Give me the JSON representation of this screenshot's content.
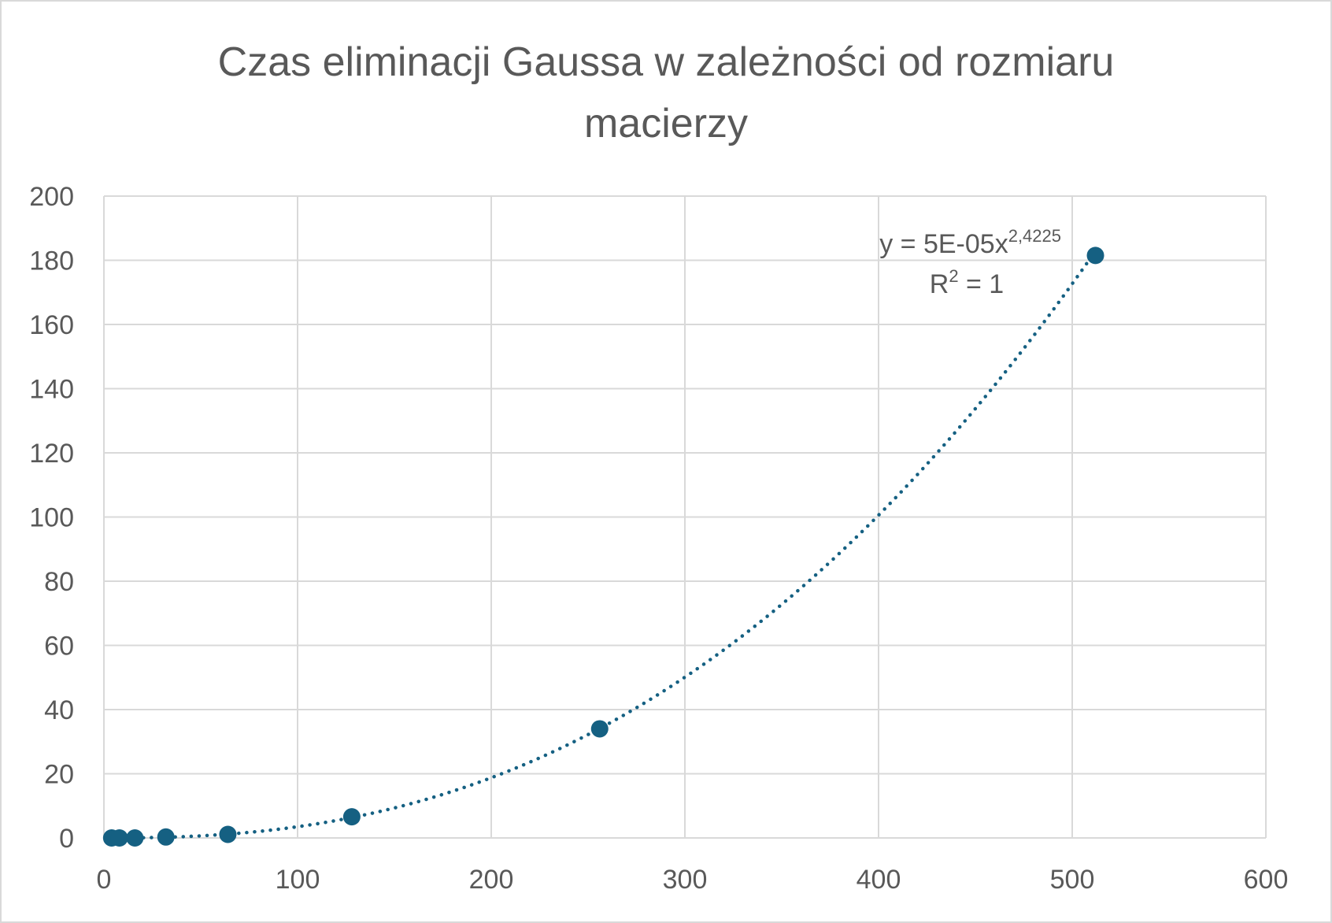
{
  "chart_data": {
    "type": "scatter",
    "title_lines": [
      "Czas eliminacji Gaussa w zależności od rozmiaru",
      "macierzy"
    ],
    "xlabel": "",
    "ylabel": "",
    "xlim": [
      0,
      600
    ],
    "ylim": [
      0,
      200
    ],
    "x_ticks": [
      0,
      100,
      200,
      300,
      400,
      500,
      600
    ],
    "y_ticks": [
      0,
      20,
      40,
      60,
      80,
      100,
      120,
      140,
      160,
      180,
      200
    ],
    "grid": true,
    "legend": "none",
    "series": [
      {
        "points": [
          {
            "x": 4,
            "y": 0
          },
          {
            "x": 8,
            "y": 0
          },
          {
            "x": 16,
            "y": 0
          },
          {
            "x": 32,
            "y": 0.3
          },
          {
            "x": 64,
            "y": 1.1
          },
          {
            "x": 128,
            "y": 6.6
          },
          {
            "x": 256,
            "y": 34
          },
          {
            "x": 512,
            "y": 181.5
          }
        ],
        "color": "#156082"
      }
    ],
    "trendline": {
      "type": "power",
      "coefficient": 5e-05,
      "exponent": 2.4225,
      "style": "dotted",
      "color": "#156082",
      "equation_base": "y = 5E-05x",
      "equation_exponent": "2,4225",
      "r2_base": "R",
      "r2_exponent": "2",
      "r2_value": " = 1"
    }
  }
}
